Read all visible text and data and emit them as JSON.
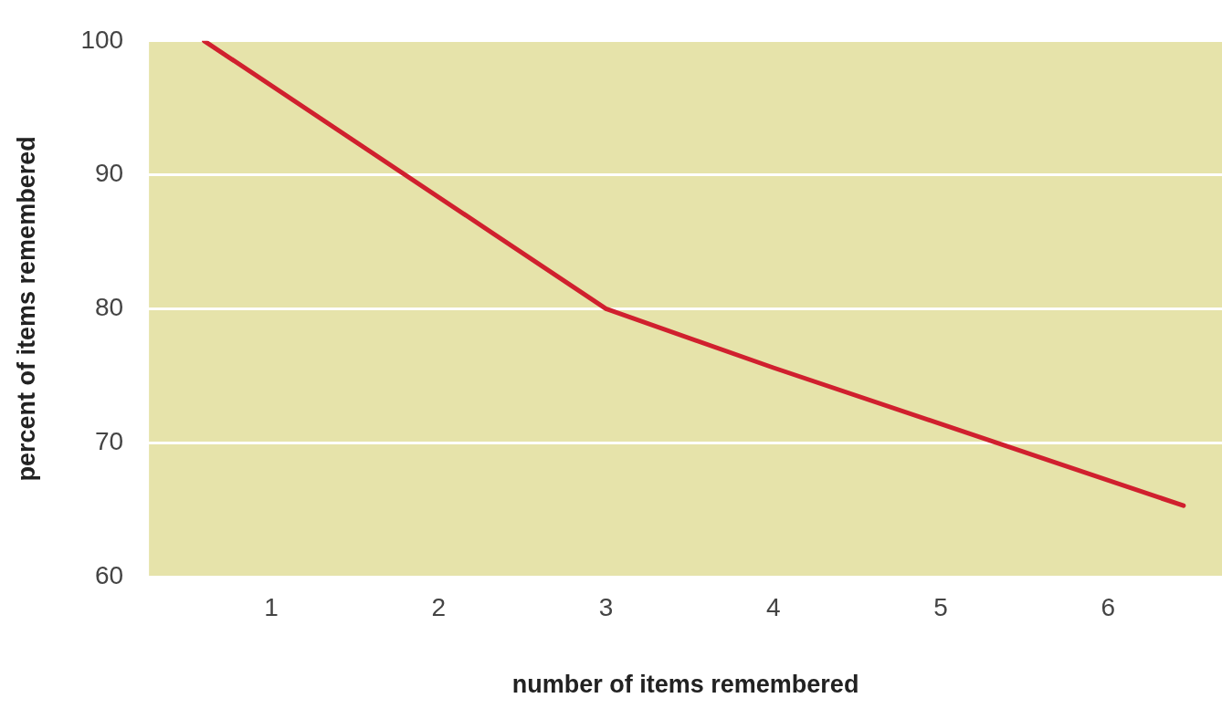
{
  "chart_data": {
    "type": "line",
    "xlabel": "number of items remembered",
    "ylabel": "percent of items remembered",
    "x": [
      0.6,
      3,
      4,
      5,
      6.45
    ],
    "series": [
      {
        "color": "#d0202e",
        "values": [
          100,
          80,
          75.6,
          71.4,
          65.3
        ]
      }
    ],
    "xlim": [
      0.27,
      6.68
    ],
    "xticks": [
      1,
      2,
      3,
      4,
      5,
      6
    ],
    "ylim": [
      60,
      100
    ],
    "yticks": [
      60,
      70,
      80,
      90,
      100
    ],
    "grid": "y",
    "legend": false,
    "marker": "none",
    "line_style": "solid"
  }
}
